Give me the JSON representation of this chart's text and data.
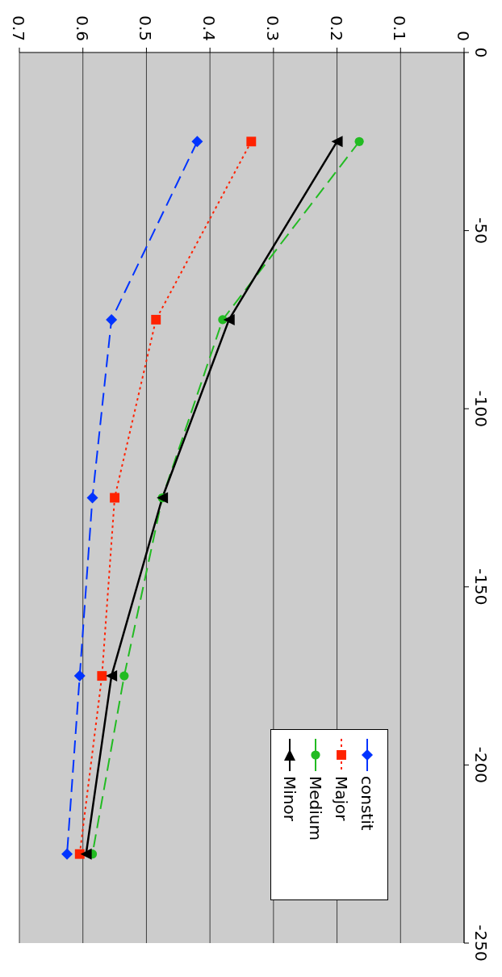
{
  "chart_data": {
    "type": "line",
    "xlim": [
      0.7,
      0
    ],
    "xticks": [
      0.7,
      0.6,
      0.5,
      0.4,
      0.3,
      0.2,
      0.1,
      0
    ],
    "ylim": [
      -250,
      0
    ],
    "yticks": [
      0,
      -50,
      -100,
      -150,
      -200,
      -250
    ],
    "grid": "x",
    "legend": "bottom right",
    "series": [
      {
        "name": "constit",
        "color": "#0033ff",
        "marker": "diamond",
        "line_style": "dashed",
        "x": [
          0.42,
          0.555,
          0.585,
          0.605,
          0.625
        ],
        "values": [
          -25,
          -75,
          -125,
          -175,
          -225
        ]
      },
      {
        "name": "Major",
        "color": "#ff2200",
        "marker": "square",
        "line_style": "dotted",
        "x": [
          0.335,
          0.485,
          0.55,
          0.57,
          0.605
        ],
        "values": [
          -25,
          -75,
          -125,
          -175,
          -225
        ]
      },
      {
        "name": "Medium",
        "color": "#22bb22",
        "marker": "circle",
        "line_style": "dashed",
        "x": [
          0.165,
          0.38,
          0.475,
          0.535,
          0.585
        ],
        "values": [
          -25,
          -75,
          -125,
          -175,
          -225
        ]
      },
      {
        "name": "Minor",
        "color": "#000000",
        "marker": "triangle",
        "line_style": "solid",
        "x": [
          0.2,
          0.37,
          0.475,
          0.555,
          0.595
        ],
        "values": [
          -25,
          -75,
          -125,
          -175,
          -225
        ]
      }
    ]
  }
}
